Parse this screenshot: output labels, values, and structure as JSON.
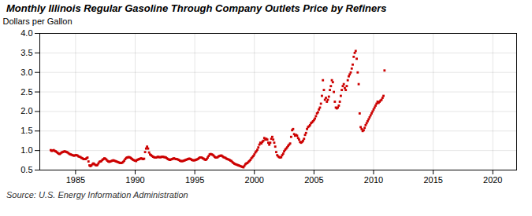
{
  "chart_data": {
    "type": "scatter",
    "title": "Monthly Illinois Regular Gasoline Through Company Outlets Price by Refiners",
    "ylabel": "Dollars per Gallon",
    "source": "Source: U.S. Energy Information Administration",
    "xlim": [
      1982,
      2022
    ],
    "ylim": [
      0.5,
      4.0
    ],
    "xticks": [
      1985,
      1990,
      1995,
      2000,
      2005,
      2010,
      2015,
      2020
    ],
    "yticks": [
      0.5,
      {
        "value": 1.0,
        "label": "1.0"
      },
      1.5,
      {
        "value": 2.0,
        "label": "2.0"
      },
      2.5,
      {
        "value": 3.0,
        "label": "3.0"
      },
      3.5,
      {
        "value": 4.0,
        "label": "4.0"
      }
    ],
    "grid": true,
    "color": "#cc0000",
    "marker": "square",
    "x": [
      1982.917,
      1983.0,
      1983.083,
      1983.167,
      1983.25,
      1983.333,
      1983.417,
      1983.5,
      1983.583,
      1983.667,
      1983.75,
      1983.833,
      1983.917,
      1984.0,
      1984.083,
      1984.167,
      1984.25,
      1984.333,
      1984.417,
      1984.5,
      1984.583,
      1984.667,
      1984.75,
      1984.833,
      1984.917,
      1985.0,
      1985.083,
      1985.167,
      1985.25,
      1985.333,
      1985.417,
      1985.5,
      1985.583,
      1985.667,
      1985.75,
      1985.833,
      1985.917,
      1986.0,
      1986.083,
      1986.167,
      1986.25,
      1986.333,
      1986.417,
      1986.5,
      1986.583,
      1986.667,
      1986.75,
      1986.833,
      1986.917,
      1987.0,
      1987.083,
      1987.167,
      1987.25,
      1987.333,
      1987.417,
      1987.5,
      1987.583,
      1987.667,
      1987.75,
      1987.833,
      1987.917,
      1988.0,
      1988.083,
      1988.167,
      1988.25,
      1988.333,
      1988.417,
      1988.5,
      1988.583,
      1988.667,
      1988.75,
      1988.833,
      1988.917,
      1989.0,
      1989.083,
      1989.167,
      1989.25,
      1989.333,
      1989.417,
      1989.5,
      1989.583,
      1989.667,
      1989.75,
      1989.833,
      1989.917,
      1990.0,
      1990.083,
      1990.167,
      1990.25,
      1990.333,
      1990.417,
      1990.5,
      1990.583,
      1990.667,
      1990.75,
      1990.833,
      1990.917,
      1991.0,
      1991.083,
      1991.167,
      1991.25,
      1991.333,
      1991.417,
      1991.5,
      1991.583,
      1991.667,
      1991.75,
      1991.833,
      1991.917,
      1992.0,
      1992.083,
      1992.167,
      1992.25,
      1992.333,
      1992.417,
      1992.5,
      1992.583,
      1992.667,
      1992.75,
      1992.833,
      1992.917,
      1993.0,
      1993.083,
      1993.167,
      1993.25,
      1993.333,
      1993.417,
      1993.5,
      1993.583,
      1993.667,
      1993.75,
      1993.833,
      1993.917,
      1994.0,
      1994.083,
      1994.167,
      1994.25,
      1994.333,
      1994.417,
      1994.5,
      1994.583,
      1994.667,
      1994.75,
      1994.833,
      1994.917,
      1995.0,
      1995.083,
      1995.167,
      1995.25,
      1995.333,
      1995.417,
      1995.5,
      1995.583,
      1995.667,
      1995.75,
      1995.833,
      1995.917,
      1996.0,
      1996.083,
      1996.167,
      1996.25,
      1996.333,
      1996.417,
      1996.5,
      1996.583,
      1996.667,
      1996.75,
      1996.833,
      1996.917,
      1997.0,
      1997.083,
      1997.167,
      1997.25,
      1997.333,
      1997.417,
      1997.5,
      1997.583,
      1997.667,
      1997.75,
      1997.833,
      1997.917,
      1998.0,
      1998.083,
      1998.167,
      1998.25,
      1998.333,
      1998.417,
      1998.5,
      1998.583,
      1998.667,
      1998.75,
      1998.833,
      1998.917,
      1999.0,
      1999.083,
      1999.167,
      1999.25,
      1999.333,
      1999.417,
      1999.5,
      1999.583,
      1999.667,
      1999.75,
      1999.833,
      1999.917,
      2000.0,
      2000.083,
      2000.167,
      2000.25,
      2000.333,
      2000.417,
      2000.5,
      2000.583,
      2000.667,
      2000.75,
      2000.833,
      2000.917,
      2001.0,
      2001.083,
      2001.167,
      2001.25,
      2001.333,
      2001.417,
      2001.5,
      2001.583,
      2001.667,
      2001.75,
      2001.833,
      2001.917,
      2002.0,
      2002.083,
      2002.167,
      2002.25,
      2002.333,
      2002.417,
      2002.5,
      2002.583,
      2002.667,
      2002.75,
      2002.833,
      2002.917,
      2003.0,
      2003.083,
      2003.167,
      2003.25,
      2003.333,
      2003.417,
      2003.5,
      2003.583,
      2003.667,
      2003.75,
      2003.833,
      2003.917,
      2004.0,
      2004.083,
      2004.167,
      2004.25,
      2004.333,
      2004.417,
      2004.5,
      2004.583,
      2004.667,
      2004.75,
      2004.833,
      2004.917,
      2005.0,
      2005.083,
      2005.167,
      2005.25,
      2005.333,
      2005.417,
      2005.5,
      2005.583,
      2005.667,
      2005.75,
      2005.833,
      2005.917,
      2006.0,
      2006.083,
      2006.167,
      2006.25,
      2006.333,
      2006.417,
      2006.5,
      2006.583,
      2006.667,
      2006.75,
      2006.833,
      2006.917,
      2007.0,
      2007.083,
      2007.167,
      2007.25,
      2007.333,
      2007.417,
      2007.5,
      2007.583,
      2007.667,
      2007.75,
      2007.833,
      2007.917,
      2008.0,
      2008.083,
      2008.167,
      2008.25,
      2008.333,
      2008.417,
      2008.5,
      2008.583,
      2008.667,
      2008.75,
      2008.833,
      2008.917,
      2009.0,
      2009.083,
      2009.167,
      2009.25,
      2009.333,
      2009.417,
      2009.5,
      2009.583,
      2009.667,
      2009.75,
      2009.833,
      2009.917,
      2010.0,
      2010.083,
      2010.167,
      2010.25,
      2010.333,
      2010.417,
      2010.5,
      2010.583,
      2010.667,
      2010.75,
      2010.833,
      2010.917
    ],
    "values": [
      1.01,
      0.99,
      1.0,
      1.01,
      0.99,
      0.98,
      0.96,
      0.94,
      0.92,
      0.91,
      0.93,
      0.95,
      0.96,
      0.97,
      0.98,
      0.97,
      0.96,
      0.95,
      0.93,
      0.91,
      0.9,
      0.89,
      0.88,
      0.87,
      0.87,
      0.88,
      0.88,
      0.87,
      0.85,
      0.84,
      0.83,
      0.81,
      0.8,
      0.78,
      0.78,
      0.78,
      0.8,
      0.82,
      0.72,
      0.62,
      0.6,
      0.62,
      0.65,
      0.67,
      0.65,
      0.63,
      0.62,
      0.63,
      0.67,
      0.71,
      0.72,
      0.73,
      0.76,
      0.78,
      0.8,
      0.79,
      0.77,
      0.74,
      0.72,
      0.71,
      0.72,
      0.73,
      0.74,
      0.75,
      0.74,
      0.73,
      0.72,
      0.71,
      0.7,
      0.69,
      0.68,
      0.68,
      0.69,
      0.71,
      0.74,
      0.78,
      0.81,
      0.82,
      0.83,
      0.83,
      0.82,
      0.8,
      0.78,
      0.76,
      0.75,
      0.74,
      0.73,
      0.76,
      0.77,
      0.78,
      0.79,
      0.8,
      0.79,
      0.78,
      0.79,
      0.96,
      1.05,
      1.1,
      1.05,
      0.95,
      0.9,
      0.88,
      0.86,
      0.84,
      0.83,
      0.82,
      0.82,
      0.83,
      0.84,
      0.83,
      0.83,
      0.83,
      0.84,
      0.84,
      0.83,
      0.83,
      0.82,
      0.8,
      0.78,
      0.77,
      0.76,
      0.77,
      0.78,
      0.79,
      0.8,
      0.79,
      0.78,
      0.78,
      0.77,
      0.76,
      0.74,
      0.73,
      0.73,
      0.73,
      0.74,
      0.75,
      0.76,
      0.77,
      0.78,
      0.79,
      0.79,
      0.78,
      0.76,
      0.75,
      0.75,
      0.75,
      0.76,
      0.77,
      0.78,
      0.8,
      0.82,
      0.82,
      0.82,
      0.8,
      0.79,
      0.77,
      0.76,
      0.78,
      0.82,
      0.86,
      0.9,
      0.91,
      0.9,
      0.89,
      0.87,
      0.84,
      0.82,
      0.82,
      0.83,
      0.85,
      0.86,
      0.87,
      0.87,
      0.85,
      0.83,
      0.82,
      0.81,
      0.79,
      0.78,
      0.77,
      0.76,
      0.74,
      0.73,
      0.7,
      0.68,
      0.66,
      0.65,
      0.64,
      0.63,
      0.62,
      0.61,
      0.6,
      0.59,
      0.58,
      0.57,
      0.61,
      0.65,
      0.67,
      0.68,
      0.71,
      0.73,
      0.76,
      0.8,
      0.83,
      0.86,
      0.9,
      0.95,
      0.98,
      1.02,
      1.08,
      1.15,
      1.2,
      1.18,
      1.22,
      1.25,
      1.32,
      1.28,
      1.3,
      1.28,
      1.2,
      1.15,
      1.2,
      1.3,
      1.35,
      1.28,
      1.2,
      1.1,
      0.96,
      0.88,
      0.85,
      0.83,
      0.82,
      0.83,
      0.88,
      0.92,
      0.98,
      1.02,
      1.05,
      1.08,
      1.12,
      1.15,
      1.18,
      1.35,
      1.52,
      1.55,
      1.42,
      1.38,
      1.4,
      1.38,
      1.32,
      1.28,
      1.22,
      1.2,
      1.22,
      1.25,
      1.3,
      1.4,
      1.45,
      1.55,
      1.6,
      1.62,
      1.65,
      1.7,
      1.72,
      1.75,
      1.78,
      1.82,
      1.88,
      1.95,
      1.98,
      2.05,
      2.1,
      2.2,
      2.4,
      2.8,
      2.55,
      2.3,
      2.35,
      2.25,
      2.3,
      2.38,
      2.55,
      2.65,
      2.8,
      2.75,
      2.5,
      2.25,
      2.1,
      2.08,
      2.1,
      2.15,
      2.25,
      2.4,
      2.55,
      2.65,
      2.7,
      2.6,
      2.55,
      2.65,
      2.8,
      2.9,
      2.95,
      3.0,
      3.1,
      3.2,
      3.4,
      3.5,
      3.55,
      3.35,
      3.0,
      2.7,
      1.95,
      1.6,
      1.55,
      1.5,
      1.52,
      1.58,
      1.65,
      1.7,
      1.75,
      1.8,
      1.85,
      1.9,
      1.95,
      2.0,
      2.05,
      2.1,
      2.15,
      2.2,
      2.25,
      2.22,
      2.25,
      2.28,
      2.3,
      2.35,
      2.4,
      3.05
    ]
  }
}
